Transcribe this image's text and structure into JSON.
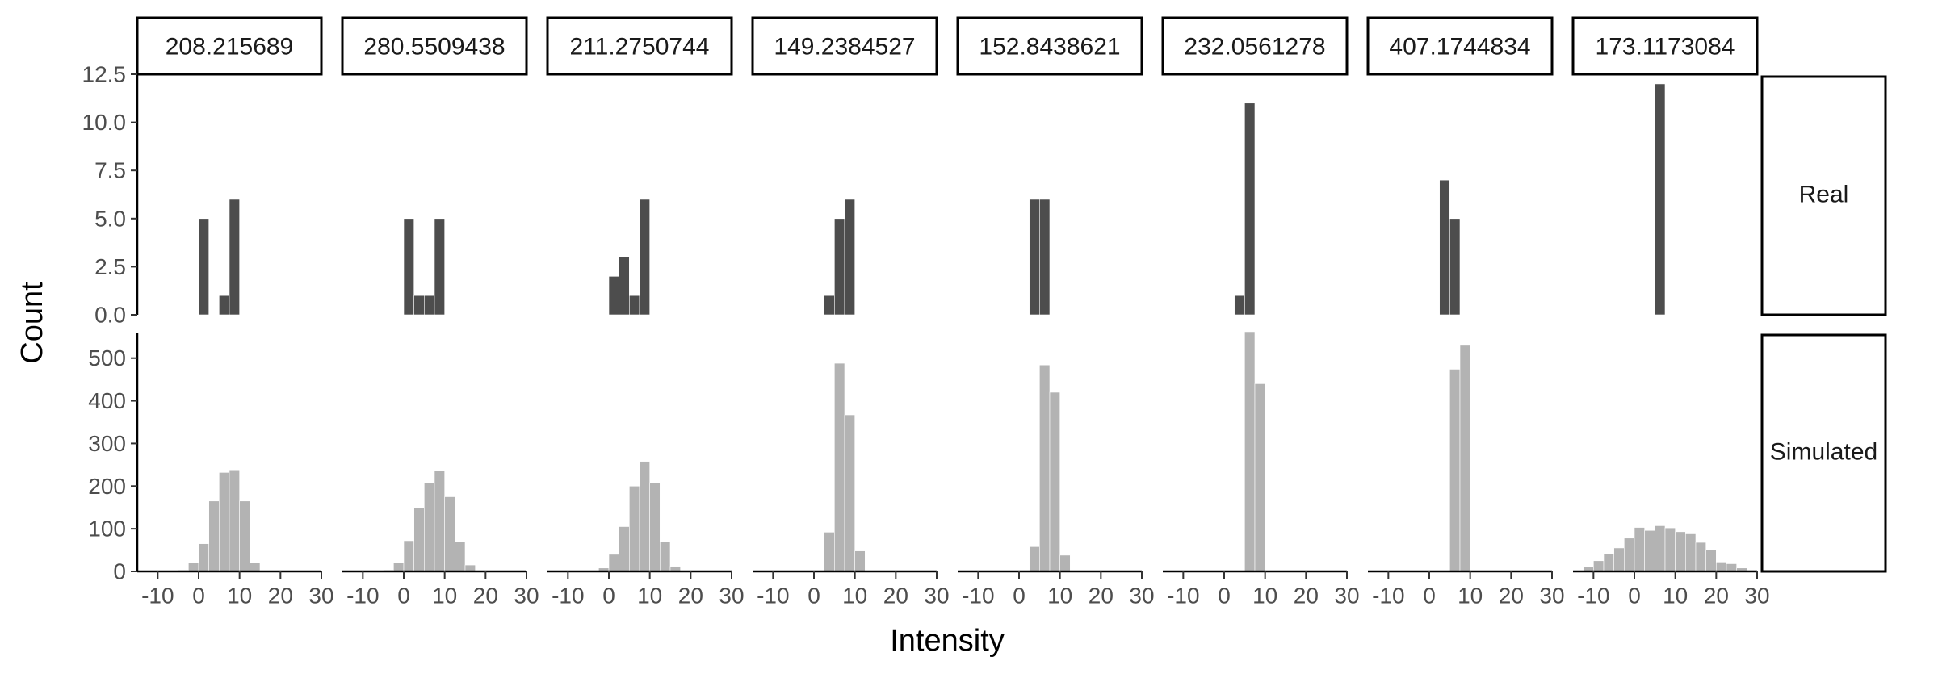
{
  "chart_data": {
    "type": "bar",
    "subtype": "faceted-histogram",
    "xlabel": "Intensity",
    "ylabel": "Count",
    "facet_columns": [
      "208.215689",
      "280.5509438",
      "211.2750744",
      "149.2384527",
      "152.8438621",
      "232.0561278",
      "407.1744834",
      "173.1173084"
    ],
    "facet_rows": [
      "Real",
      "Simulated"
    ],
    "xlim": [
      -15,
      30
    ],
    "x_ticks": [
      -10,
      0,
      10,
      20,
      30
    ],
    "x_tick_labels": [
      "-10",
      "0",
      "10",
      "20",
      "30"
    ],
    "bin_width": 2.5,
    "rows": [
      {
        "name": "Real",
        "color": "#4d4d4d",
        "ylim": [
          0,
          12.5
        ],
        "y_ticks": [
          0,
          2.5,
          5,
          7.5,
          10,
          12.5
        ],
        "y_tick_labels": [
          "0.0",
          "2.5",
          "5.0",
          "7.5",
          "10.0",
          "12.5"
        ],
        "panels": [
          {
            "facet": "208.215689",
            "bins": [
              [
                0,
                5
              ],
              [
                2.5,
                0
              ],
              [
                5,
                1
              ],
              [
                7.5,
                6
              ]
            ]
          },
          {
            "facet": "280.5509438",
            "bins": [
              [
                0,
                5
              ],
              [
                2.5,
                1
              ],
              [
                5,
                1
              ],
              [
                7.5,
                5
              ]
            ]
          },
          {
            "facet": "211.2750744",
            "bins": [
              [
                0,
                2
              ],
              [
                2.5,
                3
              ],
              [
                5,
                1
              ],
              [
                7.5,
                6
              ]
            ]
          },
          {
            "facet": "149.2384527",
            "bins": [
              [
                2.5,
                1
              ],
              [
                5,
                5
              ],
              [
                7.5,
                6
              ]
            ]
          },
          {
            "facet": "152.8438621",
            "bins": [
              [
                2.5,
                6
              ],
              [
                5,
                6
              ]
            ]
          },
          {
            "facet": "232.0561278",
            "bins": [
              [
                2.5,
                1
              ],
              [
                5,
                11
              ]
            ]
          },
          {
            "facet": "407.1744834",
            "bins": [
              [
                2.5,
                7
              ],
              [
                5,
                5
              ]
            ]
          },
          {
            "facet": "173.1173084",
            "bins": [
              [
                5,
                12
              ]
            ]
          }
        ]
      },
      {
        "name": "Simulated",
        "color": "#b3b3b3",
        "ylim": [
          0,
          560
        ],
        "y_ticks": [
          0,
          100,
          200,
          300,
          400,
          500
        ],
        "y_tick_labels": [
          "0",
          "100",
          "200",
          "300",
          "400",
          "500"
        ],
        "panels": [
          {
            "facet": "208.215689",
            "bins": [
              [
                -5,
                3
              ],
              [
                -2.5,
                20
              ],
              [
                0,
                65
              ],
              [
                2.5,
                165
              ],
              [
                5,
                232
              ],
              [
                7.5,
                238
              ],
              [
                10,
                165
              ],
              [
                12.5,
                20
              ],
              [
                15,
                2
              ]
            ]
          },
          {
            "facet": "280.5509438",
            "bins": [
              [
                -5,
                3
              ],
              [
                -2.5,
                20
              ],
              [
                0,
                72
              ],
              [
                2.5,
                150
              ],
              [
                5,
                208
              ],
              [
                7.5,
                236
              ],
              [
                10,
                175
              ],
              [
                12.5,
                70
              ],
              [
                15,
                15
              ],
              [
                17.5,
                2
              ]
            ]
          },
          {
            "facet": "211.2750744",
            "bins": [
              [
                -2.5,
                8
              ],
              [
                0,
                40
              ],
              [
                2.5,
                105
              ],
              [
                5,
                200
              ],
              [
                7.5,
                258
              ],
              [
                10,
                208
              ],
              [
                12.5,
                70
              ],
              [
                15,
                12
              ]
            ]
          },
          {
            "facet": "149.2384527",
            "bins": [
              [
                2.5,
                92
              ],
              [
                5,
                488
              ],
              [
                7.5,
                367
              ],
              [
                10,
                48
              ]
            ]
          },
          {
            "facet": "152.8438621",
            "bins": [
              [
                2.5,
                58
              ],
              [
                5,
                484
              ],
              [
                7.5,
                420
              ],
              [
                10,
                38
              ]
            ]
          },
          {
            "facet": "232.0561278",
            "bins": [
              [
                5,
                562
              ],
              [
                7.5,
                440
              ]
            ]
          },
          {
            "facet": "407.1744834",
            "bins": [
              [
                5,
                474
              ],
              [
                7.5,
                530
              ]
            ]
          },
          {
            "facet": "173.1173084",
            "bins": [
              [
                -15,
                2
              ],
              [
                -12.5,
                10
              ],
              [
                -10,
                25
              ],
              [
                -7.5,
                42
              ],
              [
                -5,
                55
              ],
              [
                -2.5,
                78
              ],
              [
                0,
                103
              ],
              [
                2.5,
                96
              ],
              [
                5,
                107
              ],
              [
                7.5,
                102
              ],
              [
                10,
                93
              ],
              [
                12.5,
                88
              ],
              [
                15,
                68
              ],
              [
                17.5,
                50
              ],
              [
                20,
                22
              ],
              [
                22.5,
                18
              ],
              [
                25,
                8
              ],
              [
                27.5,
                3
              ]
            ]
          }
        ]
      }
    ],
    "grid": false,
    "legend": "none"
  }
}
